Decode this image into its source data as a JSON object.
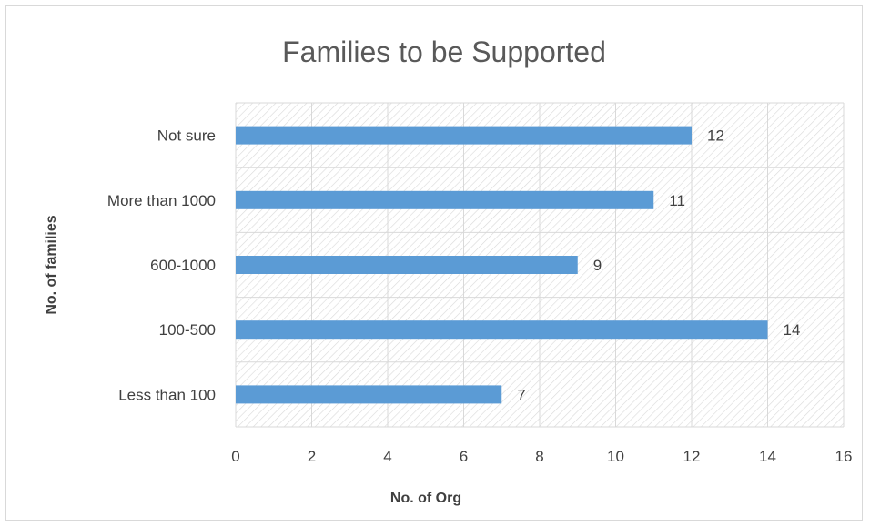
{
  "chart_data": {
    "type": "bar",
    "orientation": "horizontal",
    "title": "Families to be Supported",
    "xlabel": "No. of Org",
    "ylabel": "No. of families",
    "categories": [
      "Not sure",
      "More than 1000",
      "600-1000",
      "100-500",
      "Less than 100"
    ],
    "values": [
      12,
      11,
      9,
      14,
      7
    ],
    "xlim": [
      0,
      16
    ],
    "x_ticks": [
      "0",
      "2",
      "4",
      "6",
      "8",
      "10",
      "12",
      "14",
      "16"
    ],
    "grid": true,
    "legend": "none",
    "bar_color": "#5b9bd5",
    "plot_background": "hatched"
  }
}
